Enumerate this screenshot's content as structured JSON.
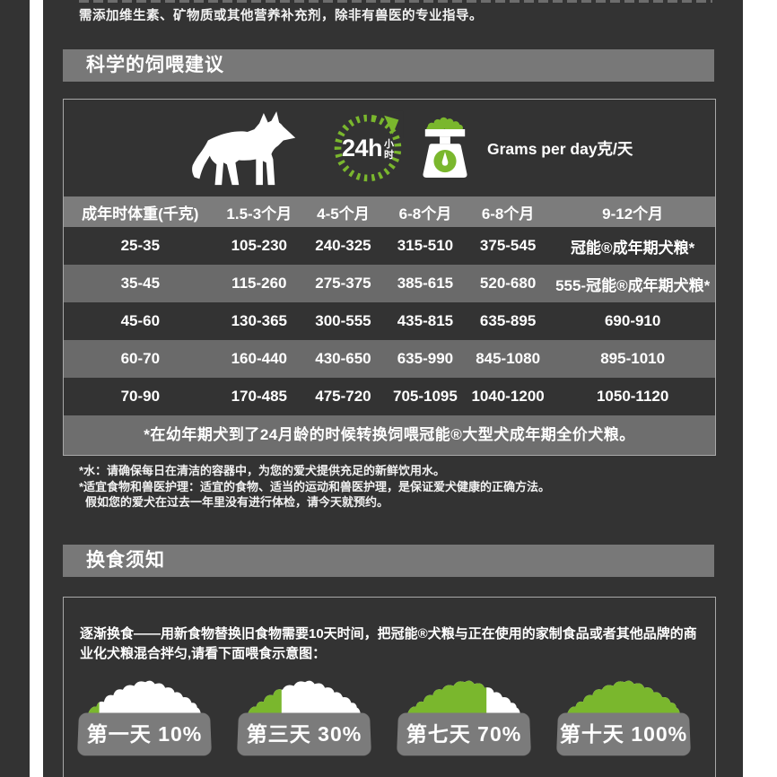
{
  "colors": {
    "background": "#333333",
    "bar_gray": "#787878",
    "row_gray": "#6a6a6a",
    "accent_green": "#7ab72d",
    "text": "#ffffff"
  },
  "intro_line": "需添加维生素、矿物质或其他营养补充剂，除非有兽医的专业指导。",
  "sections": {
    "feeding_title": "科学的饲喂建议",
    "transition_title": "换食须知"
  },
  "feeding": {
    "clock_value": "24h",
    "clock_unit_top": "小",
    "clock_unit_bottom": "时",
    "grams_label": "Grams per day克/天",
    "table": {
      "headers": [
        "成年时体重(千克)",
        "1.5-3个月",
        "4-5个月",
        "6-8个月",
        "6-8个月",
        "9-12个月"
      ],
      "rows": [
        [
          "25-35",
          "105-230",
          "240-325",
          "315-510",
          "375-545",
          "冠能®成年期犬粮*"
        ],
        [
          "35-45",
          "115-260",
          "275-375",
          "385-615",
          "520-680",
          "555-冠能®成年期犬粮*"
        ],
        [
          "45-60",
          "130-365",
          "300-555",
          "435-815",
          "635-895",
          "690-910"
        ],
        [
          "60-70",
          "160-440",
          "430-650",
          "635-990",
          "845-1080",
          "895-1010"
        ],
        [
          "70-90",
          "170-485",
          "475-720",
          "705-1095",
          "1040-1200",
          "1050-1120"
        ]
      ],
      "footnote": "*在幼年期犬到了24月龄的时候转换饲喂冠能®大型犬成年期全价犬粮。"
    },
    "notes": [
      "*水：请确保每日在清洁的容器中，为您的爱犬提供充足的新鲜饮用水。",
      "*适宜食物和兽医护理：适宜的食物、适当的运动和兽医护理，是保证爱犬健康的正确方法。",
      "假如您的爱犬在过去一年里没有进行体检，请今天就预约。"
    ]
  },
  "transition": {
    "description": "逐渐换食——用新食物替换旧食物需要10天时间，把冠能®犬粮与正在使用的家制食品或者其他品牌的商业化犬粮混合拌匀,请看下面喂食示意图：",
    "steps": [
      {
        "label": "第一天 10%",
        "percent": 10
      },
      {
        "label": "第三天 30%",
        "percent": 30
      },
      {
        "label": "第七天 70%",
        "percent": 70
      },
      {
        "label": "第十天 100%",
        "percent": 100
      }
    ]
  }
}
